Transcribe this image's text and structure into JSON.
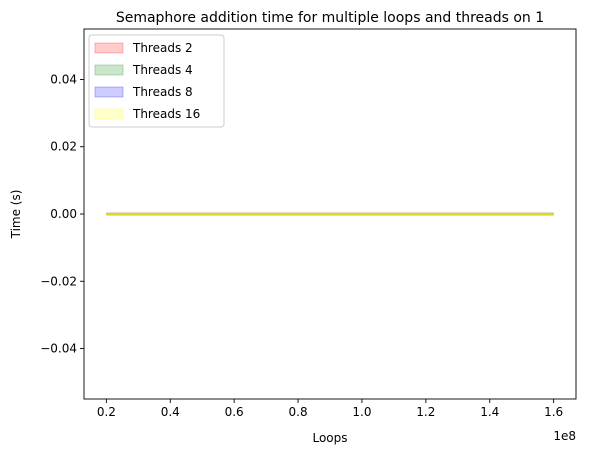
{
  "chart_data": {
    "type": "area",
    "title": "Semaphore addition time for multiple loops and threads on 1",
    "xlabel": "Loops",
    "ylabel": "Time (s)",
    "x_offset_label": "1e8",
    "xlim": [
      0.13,
      1.67
    ],
    "ylim": [
      -0.055,
      0.055
    ],
    "x_ticks": [
      0.2,
      0.4,
      0.6,
      0.8,
      1.0,
      1.2,
      1.4,
      1.6
    ],
    "x_tick_labels": [
      "0.2",
      "0.4",
      "0.6",
      "0.8",
      "1.0",
      "1.2",
      "1.4",
      "1.6"
    ],
    "y_ticks": [
      -0.04,
      -0.02,
      0.0,
      0.02,
      0.04
    ],
    "y_tick_labels": [
      "−0.04",
      "−0.02",
      "0.00",
      "0.02",
      "0.04"
    ],
    "x": [
      0.2,
      0.4,
      0.6,
      0.8,
      1.0,
      1.2,
      1.4,
      1.6
    ],
    "series": [
      {
        "name": "Threads 2",
        "color": "#ff0000",
        "values": [
          0,
          0,
          0,
          0,
          0,
          0,
          0,
          0
        ]
      },
      {
        "name": "Threads 4",
        "color": "#008000",
        "values": [
          0,
          0,
          0,
          0,
          0,
          0,
          0,
          0
        ]
      },
      {
        "name": "Threads 8",
        "color": "#0000ff",
        "values": [
          0,
          0,
          0,
          0,
          0,
          0,
          0,
          0
        ]
      },
      {
        "name": "Threads 16",
        "color": "#ffff00",
        "values": [
          0,
          0,
          0,
          0,
          0,
          0,
          0,
          0
        ]
      }
    ],
    "grid": false,
    "legend_position": "top-left"
  }
}
